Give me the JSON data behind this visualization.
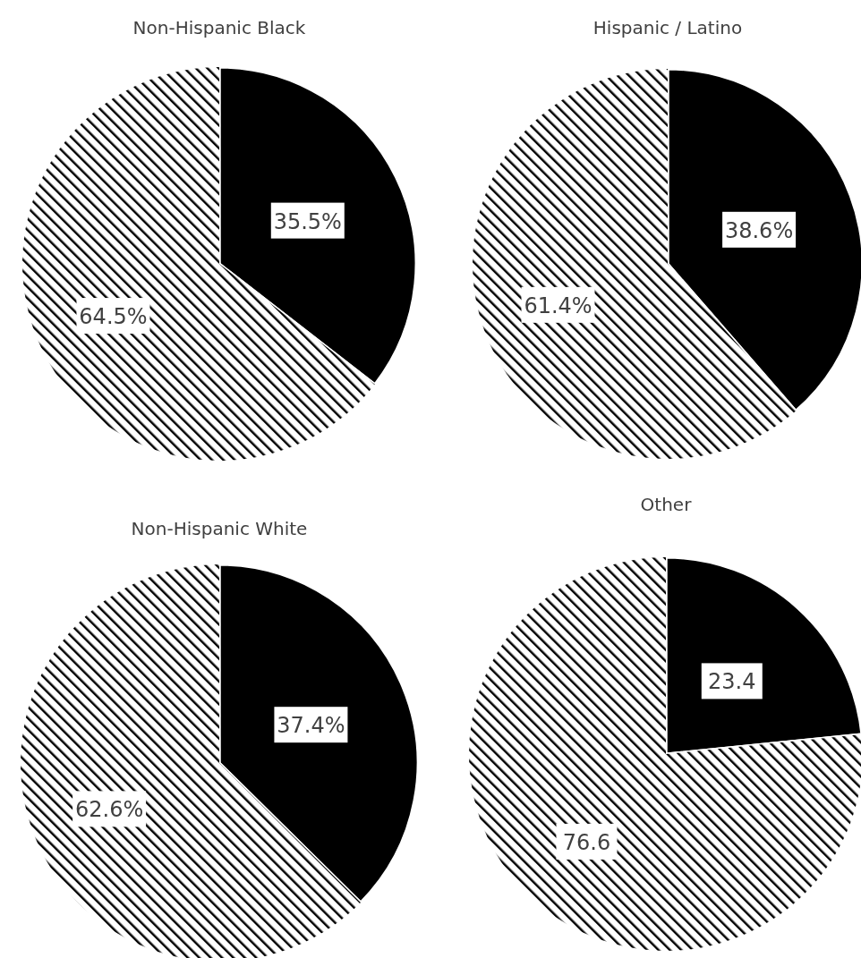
{
  "chart_data": [
    {
      "type": "pie",
      "title": "Non-Hispanic Black",
      "categories": [
        null,
        null
      ],
      "values": [
        35.5,
        64.5
      ],
      "colors": [
        "#000000",
        "#ffffff"
      ],
      "value_labels": [
        "35.5%",
        "64.5%"
      ]
    },
    {
      "type": "pie",
      "title": "Hispanic / Latino",
      "categories": [
        null,
        null
      ],
      "values": [
        38.6,
        61.4
      ],
      "colors": [
        "#000000",
        "#ffffff"
      ],
      "value_labels": [
        "38.6%",
        "61.4%"
      ]
    },
    {
      "type": "pie",
      "title": "Non-Hispanic White",
      "categories": [
        null,
        null
      ],
      "values": [
        37.4,
        62.6
      ],
      "colors": [
        "#000000",
        "#ffffff"
      ],
      "value_labels": [
        "37.4%",
        "62.6%"
      ]
    },
    {
      "type": "pie",
      "title": "Other",
      "categories": [
        null,
        null
      ],
      "values": [
        23.4,
        76.6
      ],
      "colors": [
        "#000000",
        "#ffffff"
      ],
      "value_labels": [
        "23.4",
        "76.6"
      ]
    }
  ]
}
